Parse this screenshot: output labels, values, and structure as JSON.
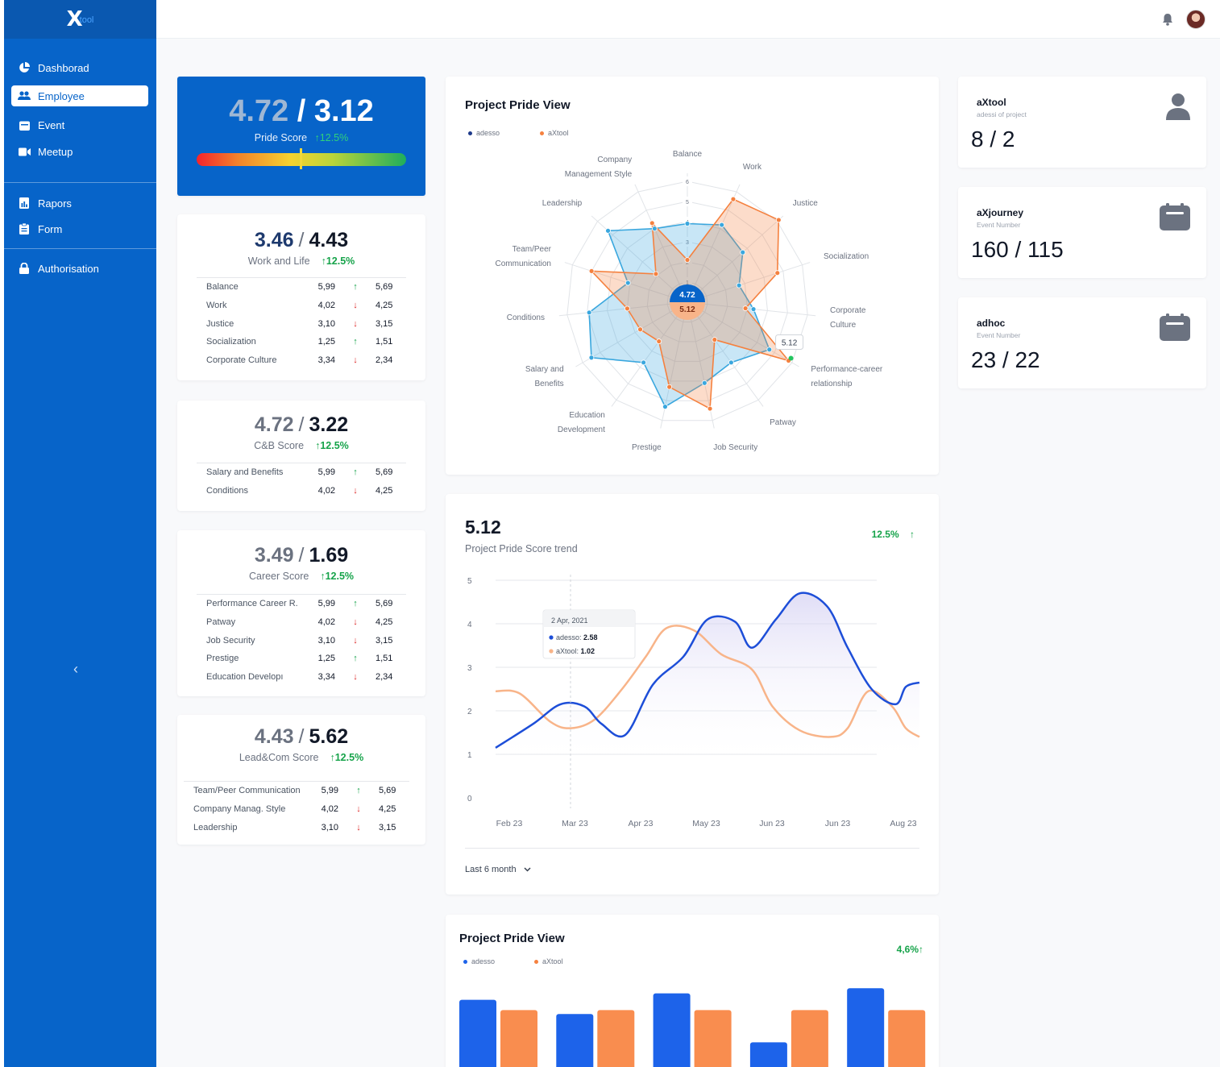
{
  "app": {
    "logo_mark": "X",
    "logo_text": "tool"
  },
  "sidebar": {
    "items": [
      {
        "label": "Dashborad",
        "icon": "pie-chart-icon"
      },
      {
        "label": "Employee",
        "icon": "users-icon"
      },
      {
        "label": "Event",
        "icon": "calendar-icon"
      },
      {
        "label": "Meetup",
        "icon": "video-icon"
      },
      {
        "label": "Rapors",
        "icon": "report-icon"
      },
      {
        "label": "Form",
        "icon": "clipboard-icon"
      },
      {
        "label": "Authorisation",
        "icon": "lock-icon"
      }
    ],
    "collapse": "‹"
  },
  "pride": {
    "a": "4.72",
    "slash": "/",
    "b": "3.12",
    "label": "Pride Score",
    "change": "↑12.5%"
  },
  "cards": [
    {
      "a": "3.46",
      "b": "4.43",
      "label": "Work and Life",
      "change": "↑12.5%",
      "rows": [
        {
          "name": "Balance",
          "v1": "5,99",
          "dir": "↑",
          "v2": "5,69"
        },
        {
          "name": "Work",
          "v1": "4,02",
          "dir": "↓",
          "v2": "4,25"
        },
        {
          "name": "Justice",
          "v1": "3,10",
          "dir": "↓",
          "v2": "3,15"
        },
        {
          "name": "Socialization",
          "v1": "1,25",
          "dir": "↑",
          "v2": "1,51"
        },
        {
          "name": "Corporate Culture",
          "v1": "3,34",
          "dir": "↓",
          "v2": "2,34"
        }
      ]
    },
    {
      "a": "4.72",
      "b": "3.22",
      "label": "C&B Score",
      "change": "↑12.5%",
      "rows": [
        {
          "name": "Salary and Benefits",
          "v1": "5,99",
          "dir": "↑",
          "v2": "5,69"
        },
        {
          "name": "Conditions",
          "v1": "4,02",
          "dir": "↓",
          "v2": "4,25"
        }
      ]
    },
    {
      "a": "3.49",
      "b": "1.69",
      "label": "Career Score",
      "change": "↑12.5%",
      "rows": [
        {
          "name": "Performance Career R.",
          "v1": "5,99",
          "dir": "↑",
          "v2": "5,69"
        },
        {
          "name": "Patway",
          "v1": "4,02",
          "dir": "↓",
          "v2": "4,25"
        },
        {
          "name": "Job Security",
          "v1": "3,10",
          "dir": "↓",
          "v2": "3,15"
        },
        {
          "name": "Prestige",
          "v1": "1,25",
          "dir": "↑",
          "v2": "1,51"
        },
        {
          "name": "Education Developı",
          "v1": "3,34",
          "dir": "↓",
          "v2": "2,34"
        }
      ]
    },
    {
      "a": "4.43",
      "b": "5.62",
      "label": "Lead&Com Score",
      "change": "↑12.5%",
      "rows": [
        {
          "name": "Team/Peer Communication",
          "v1": "5,99",
          "dir": "↑",
          "v2": "5,69"
        },
        {
          "name": "Company Manag. Style",
          "v1": "4,02",
          "dir": "↓",
          "v2": "4,25"
        },
        {
          "name": "Leadership",
          "v1": "3,10",
          "dir": "↓",
          "v2": "3,15"
        }
      ]
    }
  ],
  "radar": {
    "title": "Project Pride View",
    "legend": [
      {
        "name": "adesso",
        "color": "#1e3a8a"
      },
      {
        "name": "aXtool",
        "color": "#f5813f"
      }
    ],
    "center_a": "4.72",
    "center_b": "5.12",
    "tooltip": "5.12",
    "ticks": [
      "1",
      "2",
      "3",
      "4",
      "5",
      "6"
    ]
  },
  "chart_data": [
    {
      "type": "radar",
      "title": "Project Pride View",
      "axes": [
        [
          "Balance"
        ],
        [
          "Work"
        ],
        [
          "Justice"
        ],
        [
          "Socialization"
        ],
        [
          "Corporate",
          "Culture"
        ],
        [
          "Performance-career",
          "relationship"
        ],
        [
          "Patway"
        ],
        [
          "Job Security"
        ],
        [
          "Prestige"
        ],
        [
          "Education",
          "Development"
        ],
        [
          "Salary and",
          "Benefits"
        ],
        [
          "Conditions"
        ],
        [
          "Team/Peer",
          "Communication"
        ],
        [
          "Leadership"
        ],
        [
          "Company",
          "Management Style"
        ]
      ],
      "rmax": 6,
      "series": [
        {
          "name": "adesso",
          "color": "#3aa7de",
          "values": [
            3.9,
            4.2,
            3.7,
            2.7,
            3.3,
            4.7,
            3.7,
            4.1,
            5.3,
            3.7,
            5.5,
            4.9,
            3.1,
            5.3,
            4.0
          ]
        },
        {
          "name": "aXtool",
          "color": "#f5813f",
          "values": [
            2.1,
            5.6,
            6.1,
            4.7,
            2.9,
            5.8,
            2.3,
            5.4,
            4.3,
            2.4,
            2.7,
            3.0,
            5.0,
            2.1,
            4.3
          ]
        }
      ]
    },
    {
      "type": "line",
      "title": "5.12",
      "subtitle": "Project Pride Score trend",
      "change": "12.5%",
      "change_arrow": "↑",
      "x_labels": [
        "Feb 23",
        "Mar 23",
        "Apr 23",
        "May 23",
        "Jun 23",
        "Jun 23",
        "Aug 23"
      ],
      "ylim": [
        0,
        5
      ],
      "y_ticks": [
        "0",
        "1",
        "2",
        "3",
        "4",
        "5"
      ],
      "series": [
        {
          "name": "adesso",
          "color": "#1d4ed8",
          "x": [
            0,
            0.55,
            0.95,
            1.3,
            1.55,
            1.9,
            2.3,
            2.75,
            3.1,
            3.5,
            3.75,
            4.1,
            4.45,
            4.85,
            5.15,
            5.5,
            5.85,
            6.0,
            6.2
          ],
          "values": [
            1.15,
            1.7,
            2.15,
            2.1,
            1.7,
            1.45,
            2.6,
            3.25,
            4.1,
            4.05,
            3.45,
            4.1,
            4.7,
            4.4,
            3.45,
            2.5,
            2.15,
            2.55,
            2.65
          ]
        },
        {
          "name": "aXtool",
          "color": "#f8b489",
          "x": [
            0,
            0.35,
            0.8,
            1.1,
            1.45,
            1.85,
            2.2,
            2.5,
            2.9,
            3.3,
            3.75,
            4.05,
            4.45,
            4.9,
            5.15,
            5.45,
            5.8,
            6.0,
            6.2
          ],
          "values": [
            2.45,
            2.4,
            1.75,
            1.6,
            1.8,
            2.5,
            3.25,
            3.9,
            3.85,
            3.3,
            2.95,
            2.1,
            1.55,
            1.4,
            1.6,
            2.45,
            2.1,
            1.6,
            1.4
          ]
        }
      ],
      "tooltip": {
        "date": "2 Apr, 2021",
        "a_label": "adesso: ",
        "a_value": "2.58",
        "b_label": "aXtool: ",
        "b_value": "1.02"
      },
      "footer": "Last 6 month"
    },
    {
      "type": "bar",
      "title": "Project Pride View",
      "change": "4,6%↑",
      "series": [
        {
          "name": "adesso",
          "color": "#1d63ea",
          "values": [
            5.9,
            4.8,
            6.4,
            2.6,
            6.8
          ]
        },
        {
          "name": "aXtool",
          "color": "#f98d4f",
          "values": [
            5.1,
            5.1,
            5.1,
            5.1,
            5.1
          ]
        }
      ]
    }
  ],
  "stats": [
    {
      "title": "aXtool",
      "sub": "adessi of project",
      "value": "8 / 2",
      "icon": "user-icon"
    },
    {
      "title": "aXjourney",
      "sub": "Event Number",
      "value": "160 / 115",
      "icon": "calendar-icon"
    },
    {
      "title": "adhoc",
      "sub": "Event Number",
      "value": "23 / 22",
      "icon": "calendar-icon"
    }
  ],
  "colors": {
    "brand": "#0764c9",
    "up": "#16a34a",
    "down": "#dc2626"
  }
}
